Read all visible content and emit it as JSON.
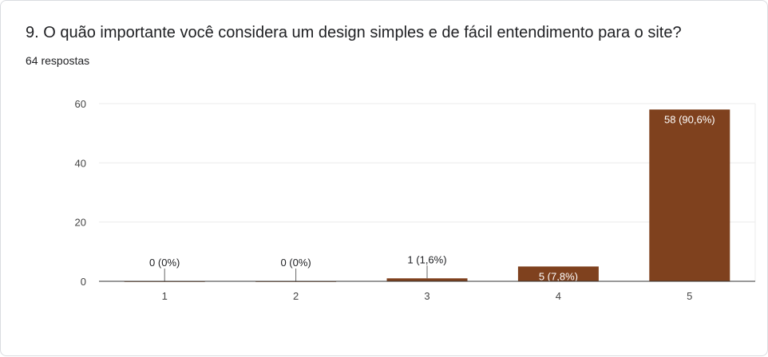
{
  "question": {
    "title": "9. O quão importante você considera um design simples e de fácil entendimento para o site?",
    "responses": "64 respostas"
  },
  "colors": {
    "bar": "#7f411e",
    "bar_label_inside": "#ffffff",
    "text": "#202124",
    "axis_text": "#444444",
    "grid": "#ebebeb",
    "axis": "#333333"
  },
  "chart_data": {
    "type": "bar",
    "categories": [
      "1",
      "2",
      "3",
      "4",
      "5"
    ],
    "values": [
      0,
      0,
      1,
      5,
      58
    ],
    "data_labels": [
      "0 (0%)",
      "0 (0%)",
      "1 (1,6%)",
      "5 (7,8%)",
      "58 (90,6%)"
    ],
    "title": "",
    "xlabel": "",
    "ylabel": "",
    "ylim": [
      0,
      60
    ],
    "yticks": [
      0,
      20,
      40,
      60
    ],
    "grid": true,
    "legend": "none"
  }
}
